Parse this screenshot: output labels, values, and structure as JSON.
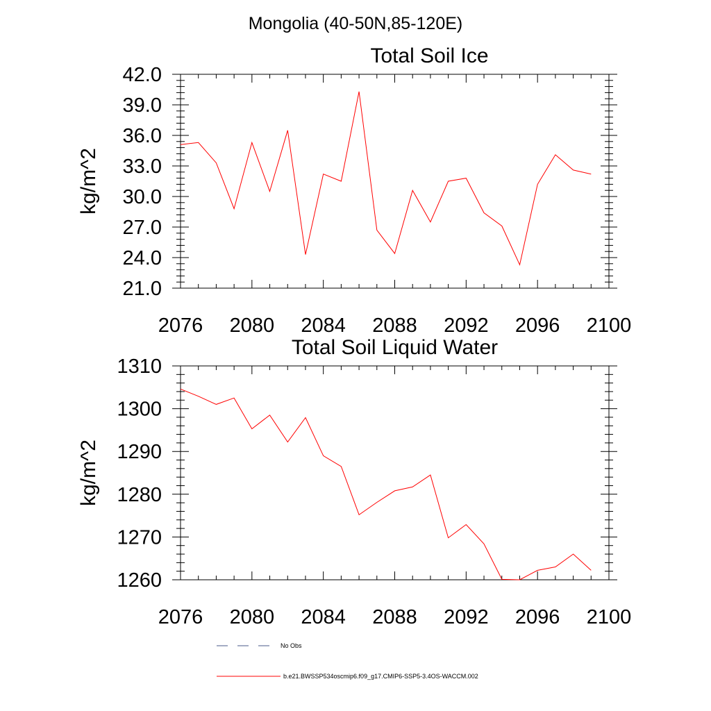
{
  "figure": {
    "main_title": "Mongolia (40-50N,85-120E)"
  },
  "colors": {
    "model_line": "#ff0000",
    "obs_line": "#4a5a8a",
    "axis": "#000000"
  },
  "chart_data": [
    {
      "type": "line",
      "title": "Total Soil Ice",
      "ylabel": "kg/m^2",
      "xlabel": "",
      "xlim": [
        2076,
        2100
      ],
      "ylim": [
        21,
        42
      ],
      "x_ticks": [
        2076,
        2080,
        2084,
        2088,
        2092,
        2096,
        2100
      ],
      "y_ticks": [
        "21.0",
        "24.0",
        "27.0",
        "30.0",
        "33.0",
        "36.0",
        "39.0",
        "42.0"
      ],
      "series": [
        {
          "name": "b.e21.BWSSP534oscmip6.f09_g17.CMIP6-SSP5-3.4OS-WACCM.002",
          "x": [
            2076,
            2077,
            2078,
            2079,
            2080,
            2081,
            2082,
            2083,
            2084,
            2085,
            2086,
            2087,
            2088,
            2089,
            2090,
            2091,
            2092,
            2093,
            2094,
            2095,
            2096,
            2097,
            2098,
            2099
          ],
          "values": [
            35.1,
            35.3,
            33.3,
            28.8,
            35.3,
            30.5,
            36.5,
            24.3,
            32.2,
            31.5,
            40.3,
            26.7,
            24.4,
            30.6,
            27.5,
            31.5,
            31.8,
            28.4,
            27.1,
            23.3,
            31.2,
            34.1,
            32.6,
            32.2
          ]
        }
      ]
    },
    {
      "type": "line",
      "title": "Total Soil Liquid Water",
      "ylabel": "kg/m^2",
      "xlabel": "",
      "xlim": [
        2076,
        2100
      ],
      "ylim": [
        1260,
        1310
      ],
      "x_ticks": [
        2076,
        2080,
        2084,
        2088,
        2092,
        2096,
        2100
      ],
      "y_ticks": [
        "1260",
        "1270",
        "1280",
        "1290",
        "1300",
        "1310"
      ],
      "series": [
        {
          "name": "b.e21.BWSSP534oscmip6.f09_g17.CMIP6-SSP5-3.4OS-WACCM.002",
          "x": [
            2076,
            2077,
            2078,
            2079,
            2080,
            2081,
            2082,
            2083,
            2084,
            2085,
            2086,
            2087,
            2088,
            2089,
            2090,
            2091,
            2092,
            2093,
            2094,
            2095,
            2096,
            2097,
            2098,
            2099
          ],
          "values": [
            1304.6,
            1302.9,
            1301.0,
            1302.5,
            1295.3,
            1298.5,
            1292.2,
            1297.9,
            1289.0,
            1286.5,
            1275.2,
            1278.1,
            1280.8,
            1281.7,
            1284.5,
            1269.8,
            1272.9,
            1268.4,
            1260.1,
            1260.0,
            1262.2,
            1263.0,
            1266.0,
            1262.2
          ]
        }
      ]
    }
  ],
  "legend": {
    "obs_label": "No Obs",
    "model_label": "b.e21.BWSSP534oscmip6.f09_g17.CMIP6-SSP5-3.4OS-WACCM.002"
  }
}
